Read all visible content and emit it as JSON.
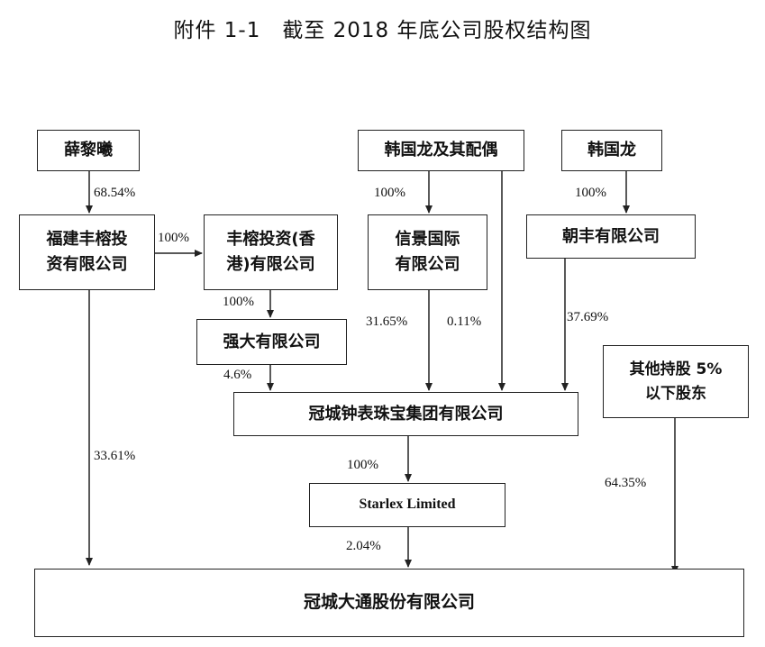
{
  "title": "附件 1-1　截至 2018 年底公司股权结构图",
  "entities": {
    "xue_lixi": "薛黎曦",
    "han_spouse": "韩国龙及其配偶",
    "han": "韩国龙",
    "fujian_fengrong": "福建丰榕投\n资有限公司",
    "fengrong_hk": "丰榕投资(香\n港)有限公司",
    "xinjing": "信景国际\n有限公司",
    "chaofeng": "朝丰有限公司",
    "qiangda": "强大有限公司",
    "other_holders": "其他持股 5%\n以下股东",
    "guancheng_group": "冠城钟表珠宝集团有限公司",
    "starlex": "Starlex Limited",
    "guancheng_datong": "冠城大通股份有限公司"
  },
  "percentages": {
    "xue_to_fujian": "68.54%",
    "fujian_to_hk": "100%",
    "hk_to_qiangda": "100%",
    "spouse_to_xinjing": "100%",
    "han_to_chaofeng": "100%",
    "xinjing_to_group": "31.65%",
    "spouse_to_group": "0.11%",
    "chaofeng_to_group": "37.69%",
    "qiangda_to_group": "4.6%",
    "fujian_to_datong": "33.61%",
    "group_to_starlex": "100%",
    "starlex_to_datong": "2.04%",
    "other_to_datong": "64.35%"
  }
}
